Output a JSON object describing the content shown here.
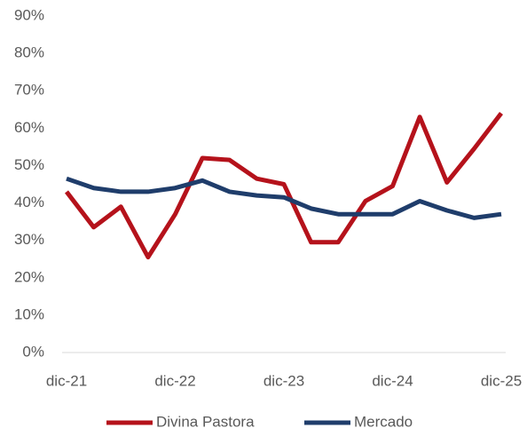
{
  "chart_data": {
    "type": "line",
    "categories": [
      "dic-21",
      null,
      null,
      null,
      "dic-22",
      null,
      null,
      null,
      "dic-23",
      null,
      null,
      null,
      "dic-24",
      null,
      null,
      null,
      "dic-25"
    ],
    "series": [
      {
        "name": "Divina Pastora",
        "color": "#b5121b",
        "values": [
          43,
          33.5,
          39,
          25.5,
          37,
          52,
          51.5,
          46.5,
          45,
          29.5,
          29.5,
          40.5,
          44.5,
          63,
          45.5,
          54.5,
          64
        ]
      },
      {
        "name": "Mercado",
        "color": "#1f3d6b",
        "values": [
          46.5,
          44,
          43,
          43,
          44,
          46,
          43,
          42,
          41.5,
          38.5,
          37,
          37,
          37,
          40.5,
          38,
          36,
          37
        ]
      }
    ],
    "ylim": [
      0,
      90
    ],
    "yticks": [
      {
        "value": 0,
        "label": "0%"
      },
      {
        "value": 10,
        "label": "10%"
      },
      {
        "value": 20,
        "label": "20%"
      },
      {
        "value": 30,
        "label": "30%"
      },
      {
        "value": 40,
        "label": "40%"
      },
      {
        "value": 50,
        "label": "50%"
      },
      {
        "value": 60,
        "label": "60%"
      },
      {
        "value": 70,
        "label": "70%"
      },
      {
        "value": 80,
        "label": "80%"
      },
      {
        "value": 90,
        "label": "90%"
      }
    ],
    "grid": false,
    "legend": "bottom"
  }
}
